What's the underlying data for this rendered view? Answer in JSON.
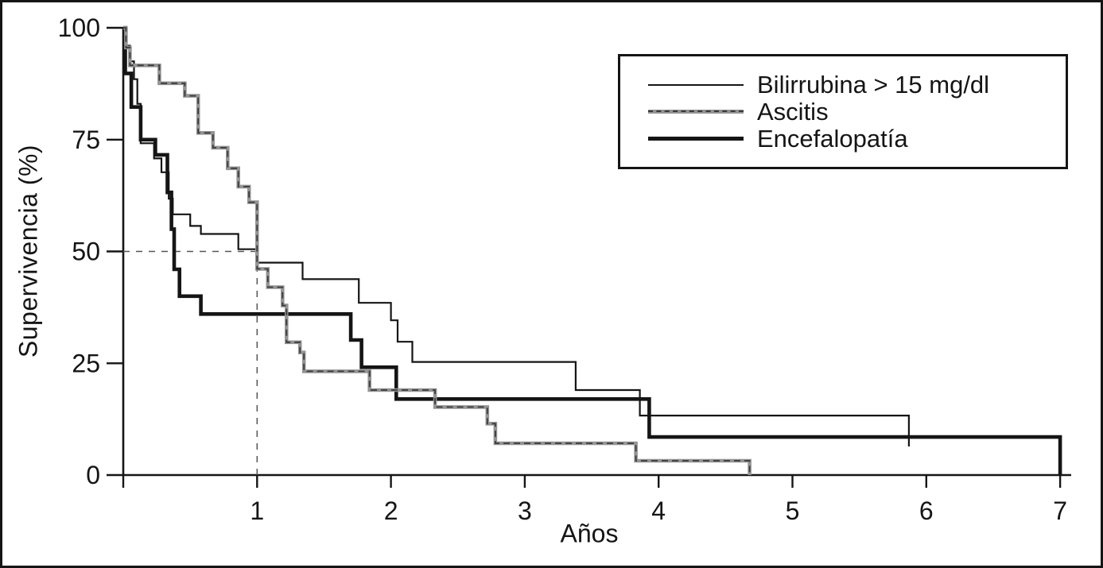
{
  "chart_data": {
    "type": "line",
    "subtype": "kaplan-meier-step-survival",
    "title": "",
    "xlabel": "Años",
    "ylabel": "Supervivencia (%)",
    "xlim": [
      0,
      7.35
    ],
    "ylim": [
      0,
      100
    ],
    "x_ticks": [
      1,
      2,
      3,
      4,
      5,
      6,
      7
    ],
    "x_ticks_unlabeled": [
      0
    ],
    "y_ticks": [
      0,
      25,
      50,
      75,
      100
    ],
    "grid": false,
    "legend_position": "upper right",
    "colors": {
      "black": "#151515",
      "gray": "#949494",
      "gray_dash_overlay": "#3a3a3a",
      "reference_dash": "#555555",
      "background": "#ffffff"
    },
    "reference_lines": [
      {
        "name": "median-horizontal",
        "x1": 0,
        "y1": 50,
        "x2": 1,
        "y2": 50,
        "style": "dashed"
      },
      {
        "name": "median-vertical",
        "x1": 1,
        "y1": 0,
        "x2": 1,
        "y2": 50,
        "style": "dashed"
      }
    ],
    "series": [
      {
        "name": "Bilirrubina > 15 mg/dl",
        "style": "thin",
        "color": "#151515",
        "stroke_width": 2.2,
        "z": 1,
        "points": [
          [
            0,
            100
          ],
          [
            0.02,
            96
          ],
          [
            0.05,
            92.5
          ],
          [
            0.08,
            88.5
          ],
          [
            0.105,
            83
          ],
          [
            0.13,
            74.2
          ],
          [
            0.23,
            70.8
          ],
          [
            0.285,
            67.7
          ],
          [
            0.34,
            61.8
          ],
          [
            0.37,
            58.3
          ],
          [
            0.5,
            55.7
          ],
          [
            0.58,
            53.9
          ],
          [
            0.86,
            50.5
          ],
          [
            1.0,
            47.5
          ],
          [
            1.34,
            43.8
          ],
          [
            1.76,
            38.5
          ],
          [
            2.0,
            34.6
          ],
          [
            2.05,
            29.8
          ],
          [
            2.16,
            25.3
          ],
          [
            3.38,
            19.0
          ],
          [
            3.86,
            13.3
          ],
          [
            5.87,
            6.4
          ]
        ]
      },
      {
        "name": "Ascitis",
        "style": "gray-dashed",
        "color": "#949494",
        "stroke_width": 4.6,
        "z": 3,
        "points": [
          [
            0,
            100
          ],
          [
            0.02,
            95.6
          ],
          [
            0.05,
            91.6
          ],
          [
            0.27,
            87.6
          ],
          [
            0.46,
            84.8
          ],
          [
            0.56,
            76.5
          ],
          [
            0.67,
            73.2
          ],
          [
            0.78,
            68.6
          ],
          [
            0.86,
            64.5
          ],
          [
            0.94,
            61.0
          ],
          [
            1.0,
            46.1
          ],
          [
            1.08,
            42.0
          ],
          [
            1.19,
            37.9
          ],
          [
            1.22,
            29.7
          ],
          [
            1.32,
            27.4
          ],
          [
            1.35,
            23.2
          ],
          [
            1.84,
            19.0
          ],
          [
            2.33,
            15.2
          ],
          [
            2.72,
            11.5
          ],
          [
            2.78,
            7.1
          ],
          [
            3.83,
            3.2
          ],
          [
            4.68,
            0
          ]
        ]
      },
      {
        "name": "Encefalopatía",
        "style": "thick",
        "color": "#151515",
        "stroke_width": 4.6,
        "z": 2,
        "points": [
          [
            0,
            100
          ],
          [
            0.015,
            89.8
          ],
          [
            0.06,
            82.3
          ],
          [
            0.13,
            75.0
          ],
          [
            0.24,
            71.6
          ],
          [
            0.33,
            63.2
          ],
          [
            0.36,
            55.0
          ],
          [
            0.38,
            46.0
          ],
          [
            0.42,
            40.0
          ],
          [
            0.58,
            36.0
          ],
          [
            1.7,
            30.2
          ],
          [
            1.78,
            24.1
          ],
          [
            2.04,
            17.0
          ],
          [
            3.93,
            8.5
          ],
          [
            7.0,
            0
          ]
        ]
      }
    ]
  }
}
